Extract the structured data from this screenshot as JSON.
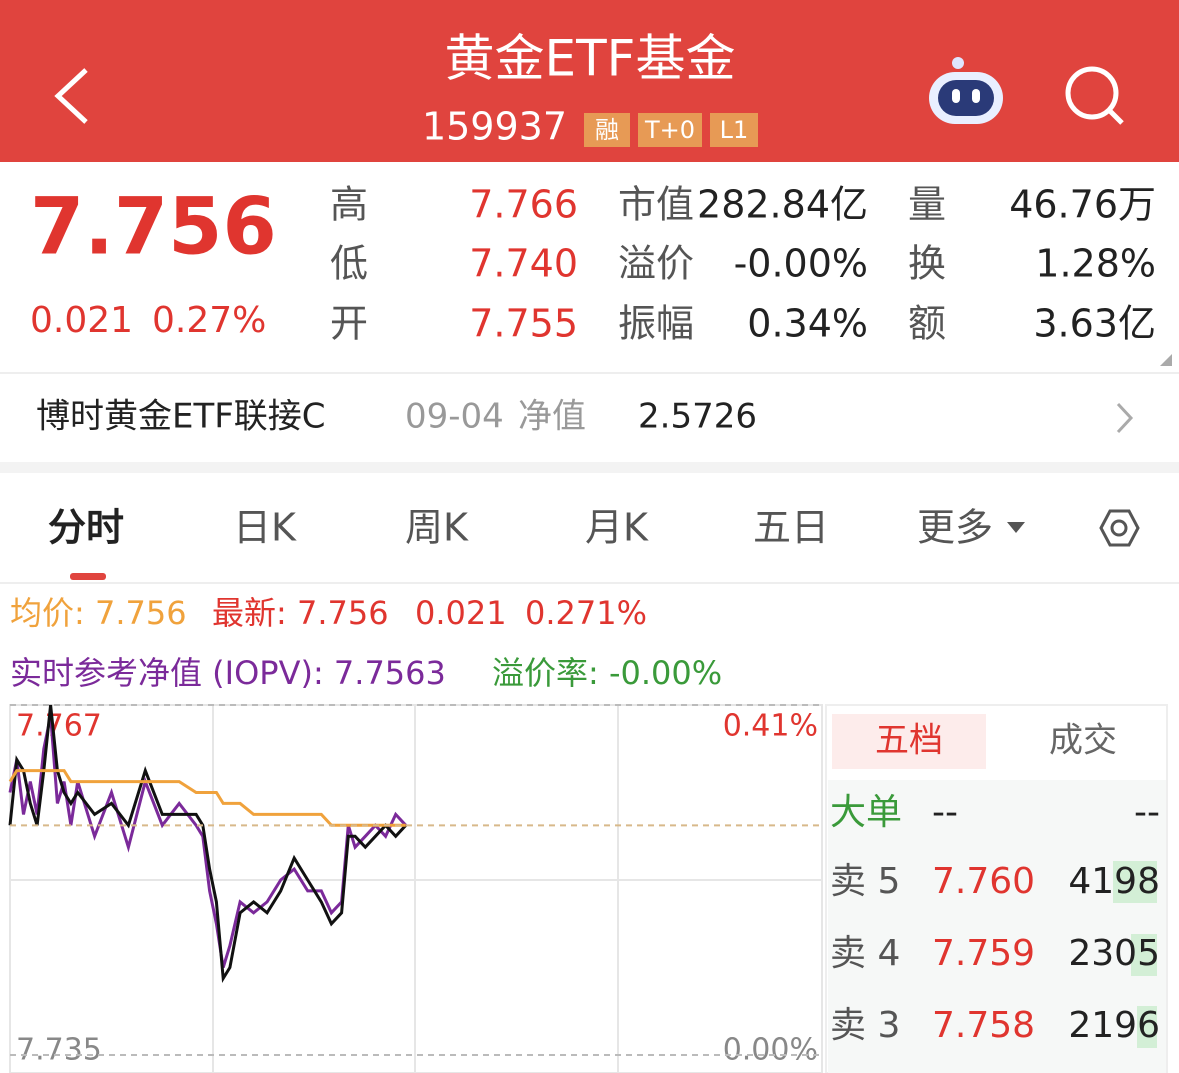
{
  "header": {
    "title": "黄金ETF基金",
    "code": "159937",
    "tags": [
      "融",
      "T+0",
      "L1"
    ]
  },
  "quote": {
    "price": "7.756",
    "change": "0.021",
    "change_pct": "0.27%",
    "stats": [
      [
        {
          "label": "高",
          "value": "7.766"
        },
        {
          "label": "低",
          "value": "7.740"
        },
        {
          "label": "开",
          "value": "7.755"
        }
      ],
      [
        {
          "label": "市值",
          "value": "282.84亿"
        },
        {
          "label": "溢价",
          "value": "-0.00%"
        },
        {
          "label": "振幅",
          "value": "0.34%"
        }
      ],
      [
        {
          "label": "量",
          "value": "46.76万"
        },
        {
          "label": "换",
          "value": "1.28%"
        },
        {
          "label": "额",
          "value": "3.63亿"
        }
      ]
    ]
  },
  "linked_fund": {
    "name": "博时黄金ETF联接C",
    "date": "09-04",
    "nav_label": "净值",
    "nav": "2.5726"
  },
  "tabs": [
    "分时",
    "日K",
    "周K",
    "月K",
    "五日",
    "更多"
  ],
  "info": {
    "avg": "均价: 7.756",
    "latest": "最新: 7.756",
    "change": "0.021",
    "change_pct": "0.271%",
    "iopv": "实时参考净值 (IOPV): 7.7563",
    "premium": "溢价率: -0.00%"
  },
  "chart_data": {
    "type": "line",
    "x": [
      0,
      2,
      4,
      6,
      8,
      10,
      12,
      14,
      16,
      18,
      20,
      25,
      30,
      35,
      40,
      45,
      50,
      55,
      57,
      59,
      61,
      63,
      65,
      68,
      72,
      76,
      80,
      84,
      88,
      92,
      95,
      98,
      100,
      102,
      105,
      108,
      111,
      114,
      117
    ],
    "xlim": [
      0,
      240
    ],
    "ylim": [
      7.735,
      7.767
    ],
    "yticks": [
      7.767,
      7.735
    ],
    "y2lim": [
      0,
      0.41
    ],
    "y2ticks": [
      {
        "value": 0.41,
        "label": "0.41%"
      },
      {
        "value": 0,
        "label": "0.00%"
      }
    ],
    "series": [
      {
        "color": "#7b2a9a",
        "values": [
          7.759,
          7.762,
          7.757,
          7.76,
          7.757,
          7.763,
          7.766,
          7.758,
          7.76,
          7.756,
          7.76,
          7.755,
          7.759,
          7.754,
          7.76,
          7.756,
          7.758,
          7.756,
          7.755,
          7.75,
          7.747,
          7.743,
          7.745,
          7.749,
          7.748,
          7.749,
          7.751,
          7.752,
          7.75,
          7.75,
          7.748,
          7.749,
          7.756,
          7.754,
          7.755,
          7.756,
          7.755,
          7.757,
          7.756
        ]
      },
      {
        "color": "#111111",
        "values": [
          7.756,
          7.762,
          7.761,
          7.758,
          7.756,
          7.761,
          7.767,
          7.761,
          7.759,
          7.758,
          7.759,
          7.757,
          7.758,
          7.756,
          7.761,
          7.757,
          7.757,
          7.757,
          7.756,
          7.752,
          7.749,
          7.742,
          7.743,
          7.748,
          7.749,
          7.748,
          7.75,
          7.753,
          7.751,
          7.749,
          7.747,
          7.748,
          7.755,
          7.755,
          7.754,
          7.755,
          7.756,
          7.755,
          7.756
        ]
      },
      {
        "color": "#f0a23c",
        "values": [
          7.76,
          7.761,
          7.761,
          7.761,
          7.761,
          7.761,
          7.761,
          7.761,
          7.761,
          7.76,
          7.76,
          7.76,
          7.76,
          7.76,
          7.76,
          7.76,
          7.76,
          7.759,
          7.759,
          7.759,
          7.759,
          7.758,
          7.758,
          7.758,
          7.757,
          7.757,
          7.757,
          7.757,
          7.757,
          7.757,
          7.756,
          7.756,
          7.756,
          7.756,
          7.756,
          7.756,
          7.756,
          7.756,
          7.756
        ]
      }
    ]
  },
  "order_book": {
    "tabs": [
      "五档",
      "成交"
    ],
    "rows": [
      [
        "大单",
        "--",
        "--"
      ],
      [
        "卖 5",
        "7.760",
        "4198"
      ],
      [
        "卖 4",
        "7.759",
        "2305"
      ],
      [
        "卖 3",
        "7.758",
        "2196"
      ]
    ]
  }
}
